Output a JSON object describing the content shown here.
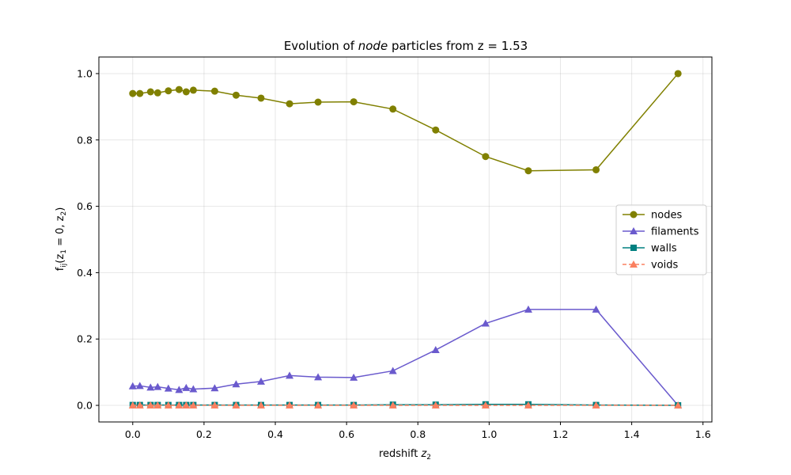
{
  "chart_data": {
    "type": "line",
    "title_prefix": "Evolution of ",
    "title_italic": "node",
    "title_suffix": " particles from z = 1.53",
    "xlabel_prefix": "redshift ",
    "xlabel_var": "z",
    "xlabel_sub": "2",
    "ylabel_f": "f",
    "ylabel_sub": "ij",
    "ylabel_args": "(z",
    "ylabel_args_sub1": "1",
    "ylabel_mid": " = 0, z",
    "ylabel_args_sub2": "2",
    "ylabel_end": ")",
    "xlim": [
      -0.095,
      1.625
    ],
    "ylim": [
      -0.05,
      1.05
    ],
    "xticks": [
      "0.0",
      "0.2",
      "0.4",
      "0.6",
      "0.8",
      "1.0",
      "1.2",
      "1.4",
      "1.6"
    ],
    "xtick_values": [
      0.0,
      0.2,
      0.4,
      0.6,
      0.8,
      1.0,
      1.2,
      1.4,
      1.6
    ],
    "yticks": [
      "0.0",
      "0.2",
      "0.4",
      "0.6",
      "0.8",
      "1.0"
    ],
    "ytick_values": [
      0.0,
      0.2,
      0.4,
      0.6,
      0.8,
      1.0
    ],
    "grid": true,
    "legend_position": "center-right",
    "x": [
      0.0,
      0.02,
      0.05,
      0.07,
      0.1,
      0.13,
      0.15,
      0.17,
      0.23,
      0.29,
      0.36,
      0.44,
      0.52,
      0.62,
      0.73,
      0.85,
      0.99,
      1.11,
      1.3,
      1.53
    ],
    "series": [
      {
        "name": "nodes",
        "color": "#808000",
        "marker": "circle",
        "dashed": false,
        "values": [
          0.94,
          0.94,
          0.945,
          0.942,
          0.948,
          0.952,
          0.945,
          0.95,
          0.947,
          0.935,
          0.926,
          0.909,
          0.914,
          0.915,
          0.893,
          0.83,
          0.75,
          0.707,
          0.71,
          1.0
        ]
      },
      {
        "name": "filaments",
        "color": "#6a5acd",
        "marker": "triangle",
        "dashed": false,
        "values": [
          0.058,
          0.059,
          0.054,
          0.056,
          0.051,
          0.047,
          0.053,
          0.049,
          0.052,
          0.064,
          0.072,
          0.09,
          0.085,
          0.084,
          0.104,
          0.167,
          0.247,
          0.289,
          0.289,
          0.0
        ]
      },
      {
        "name": "walls",
        "color": "#008080",
        "marker": "square",
        "dashed": false,
        "values": [
          0.001,
          0.001,
          0.001,
          0.001,
          0.001,
          0.001,
          0.001,
          0.001,
          0.001,
          0.001,
          0.001,
          0.001,
          0.001,
          0.001,
          0.002,
          0.002,
          0.003,
          0.003,
          0.001,
          0.0
        ]
      },
      {
        "name": "voids",
        "color": "#fa8060",
        "marker": "triangle",
        "dashed": true,
        "values": [
          0.0,
          0.0,
          0.0,
          0.0,
          0.0,
          0.0,
          0.0,
          0.0,
          0.0,
          0.0,
          0.0,
          0.0,
          0.0,
          0.0,
          0.0,
          0.0,
          0.0,
          0.0,
          0.0,
          0.0
        ]
      }
    ]
  }
}
